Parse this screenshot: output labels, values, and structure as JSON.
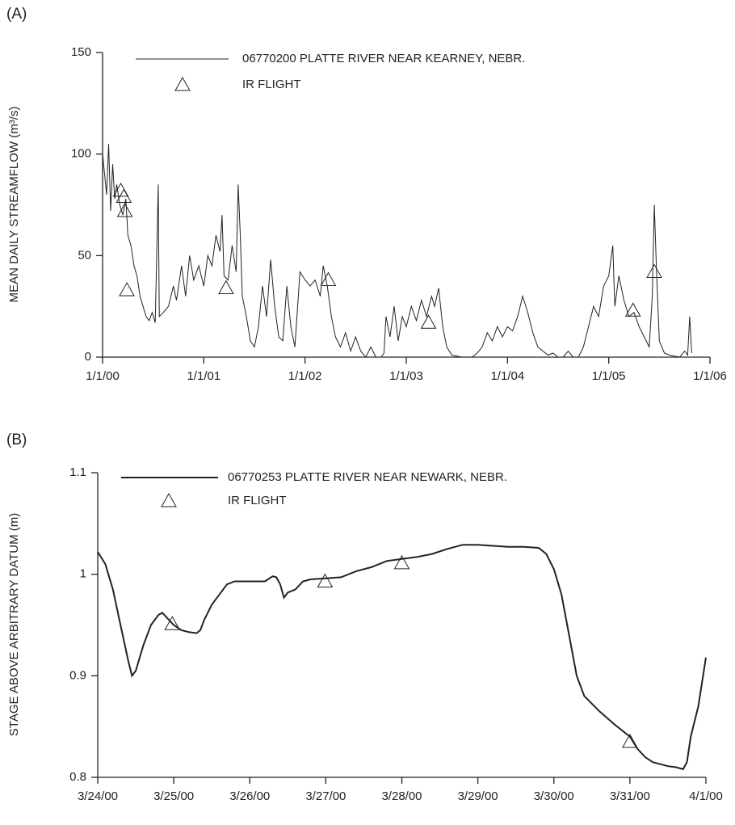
{
  "chart_data": [
    {
      "type": "line",
      "panel": "(A)",
      "ylabel": "MEAN DAILY STREAMFLOW (m³/s)",
      "xlim": [
        2000,
        2006
      ],
      "xticks": [
        {
          "value": 2000,
          "label": "1/1/00"
        },
        {
          "value": 2001,
          "label": "1/1/01"
        },
        {
          "value": 2002,
          "label": "1/1/02"
        },
        {
          "value": 2003,
          "label": "1/1/03"
        },
        {
          "value": 2004,
          "label": "1/1/04"
        },
        {
          "value": 2005,
          "label": "1/1/05"
        },
        {
          "value": 2006,
          "label": "1/1/06"
        }
      ],
      "ylim": [
        0,
        150
      ],
      "yticks": [
        0,
        50,
        100,
        150
      ],
      "series": [
        {
          "name": "06770200 PLATTE RIVER NEAR KEARNEY, NEBR.",
          "color": "#222222",
          "marker": "none",
          "x": [
            2000.0,
            2000.02,
            2000.04,
            2000.06,
            2000.08,
            2000.1,
            2000.12,
            2000.14,
            2000.17,
            2000.2,
            2000.23,
            2000.25,
            2000.28,
            2000.31,
            2000.34,
            2000.37,
            2000.4,
            2000.43,
            2000.46,
            2000.49,
            2000.52,
            2000.55,
            2000.56,
            2000.6,
            2000.65,
            2000.7,
            2000.73,
            2000.78,
            2000.82,
            2000.86,
            2000.9,
            2000.95,
            2001.0,
            2001.04,
            2001.08,
            2001.12,
            2001.16,
            2001.18,
            2001.2,
            2001.24,
            2001.28,
            2001.32,
            2001.34,
            2001.36,
            2001.38,
            2001.42,
            2001.46,
            2001.5,
            2001.54,
            2001.58,
            2001.62,
            2001.66,
            2001.7,
            2001.74,
            2001.78,
            2001.82,
            2001.86,
            2001.9,
            2001.95,
            2002.0,
            2002.05,
            2002.1,
            2002.15,
            2002.18,
            2002.22,
            2002.26,
            2002.3,
            2002.35,
            2002.4,
            2002.45,
            2002.5,
            2002.55,
            2002.6,
            2002.65,
            2002.7,
            2002.75,
            2002.78,
            2002.8,
            2002.84,
            2002.88,
            2002.92,
            2002.96,
            2003.0,
            2003.05,
            2003.1,
            2003.15,
            2003.2,
            2003.25,
            2003.28,
            2003.32,
            2003.36,
            2003.4,
            2003.45,
            2003.55,
            2003.65,
            2003.7,
            2003.75,
            2003.8,
            2003.85,
            2003.9,
            2003.95,
            2004.0,
            2004.05,
            2004.1,
            2004.15,
            2004.2,
            2004.25,
            2004.3,
            2004.35,
            2004.4,
            2004.45,
            2004.5,
            2004.55,
            2004.6,
            2004.65,
            2004.7,
            2004.75,
            2004.8,
            2004.85,
            2004.9,
            2004.95,
            2005.0,
            2005.04,
            2005.06,
            2005.1,
            2005.15,
            2005.2,
            2005.25,
            2005.3,
            2005.35,
            2005.4,
            2005.43,
            2005.45,
            2005.47,
            2005.5,
            2005.55,
            2005.6,
            2005.7,
            2005.75,
            2005.78,
            2005.8,
            2005.82
          ],
          "values": [
            100,
            90,
            80,
            105,
            72,
            95,
            78,
            85,
            75,
            70,
            78,
            60,
            55,
            45,
            40,
            30,
            25,
            20,
            18,
            22,
            17,
            85,
            20,
            22,
            25,
            35,
            28,
            45,
            30,
            50,
            38,
            45,
            35,
            50,
            45,
            60,
            52,
            70,
            40,
            38,
            55,
            42,
            85,
            60,
            30,
            20,
            8,
            5,
            15,
            35,
            20,
            48,
            25,
            10,
            8,
            35,
            15,
            5,
            42,
            38,
            35,
            38,
            30,
            45,
            35,
            20,
            10,
            5,
            12,
            3,
            10,
            3,
            0,
            5,
            0,
            0,
            2,
            20,
            10,
            25,
            8,
            20,
            15,
            25,
            18,
            28,
            20,
            30,
            25,
            34,
            15,
            5,
            1,
            0,
            0,
            2,
            5,
            12,
            8,
            15,
            10,
            15,
            13,
            20,
            30,
            22,
            12,
            5,
            3,
            1,
            2,
            0,
            0,
            3,
            0,
            0,
            5,
            15,
            25,
            20,
            35,
            40,
            55,
            25,
            40,
            28,
            20,
            22,
            15,
            10,
            5,
            30,
            75,
            45,
            8,
            2,
            1,
            0,
            3,
            1,
            20,
            2
          ]
        },
        {
          "name": "IR FLIGHT",
          "color": "#222222",
          "marker": "triangle",
          "x": [
            2000.18,
            2000.21,
            2000.22,
            2000.24,
            2001.22,
            2002.23,
            2003.22,
            2005.24,
            2005.45
          ],
          "values": [
            82,
            79,
            72,
            33,
            34,
            38,
            17,
            23,
            42
          ]
        }
      ]
    },
    {
      "type": "line",
      "panel": "(B)",
      "ylabel": "STAGE ABOVE ARBITRARY DATUM (m)",
      "xlim": [
        0,
        8
      ],
      "xticks": [
        {
          "value": 0,
          "label": "3/24/00"
        },
        {
          "value": 1,
          "label": "3/25/00"
        },
        {
          "value": 2,
          "label": "3/26/00"
        },
        {
          "value": 3,
          "label": "3/27/00"
        },
        {
          "value": 4,
          "label": "3/28/00"
        },
        {
          "value": 5,
          "label": "3/29/00"
        },
        {
          "value": 6,
          "label": "3/30/00"
        },
        {
          "value": 7,
          "label": "3/31/00"
        },
        {
          "value": 8,
          "label": "4/1/00"
        }
      ],
      "ylim": [
        0.8,
        1.1
      ],
      "yticks": [
        0.8,
        0.9,
        1,
        1.1
      ],
      "series": [
        {
          "name": "06770253 PLATTE RIVER NEAR NEWARK, NEBR.",
          "color": "#222222",
          "marker": "none",
          "x": [
            0,
            0.1,
            0.2,
            0.3,
            0.4,
            0.45,
            0.5,
            0.6,
            0.7,
            0.8,
            0.85,
            0.9,
            1.0,
            1.1,
            1.2,
            1.3,
            1.35,
            1.4,
            1.5,
            1.6,
            1.7,
            1.8,
            2.0,
            2.2,
            2.3,
            2.35,
            2.4,
            2.45,
            2.5,
            2.6,
            2.7,
            2.8,
            3.0,
            3.2,
            3.4,
            3.6,
            3.8,
            4.0,
            4.2,
            4.4,
            4.6,
            4.8,
            5.0,
            5.2,
            5.4,
            5.6,
            5.8,
            5.9,
            6.0,
            6.1,
            6.2,
            6.3,
            6.4,
            6.6,
            6.8,
            7.0,
            7.1,
            7.2,
            7.3,
            7.5,
            7.6,
            7.7,
            7.75,
            7.8,
            7.9,
            8.0
          ],
          "values": [
            1.022,
            1.01,
            0.985,
            0.95,
            0.915,
            0.9,
            0.905,
            0.93,
            0.95,
            0.96,
            0.962,
            0.958,
            0.95,
            0.945,
            0.943,
            0.942,
            0.945,
            0.955,
            0.97,
            0.98,
            0.99,
            0.993,
            0.993,
            0.993,
            0.998,
            0.997,
            0.99,
            0.977,
            0.982,
            0.985,
            0.993,
            0.995,
            0.996,
            0.997,
            1.003,
            1.007,
            1.013,
            1.015,
            1.017,
            1.02,
            1.025,
            1.029,
            1.029,
            1.028,
            1.027,
            1.027,
            1.026,
            1.02,
            1.005,
            0.98,
            0.94,
            0.9,
            0.88,
            0.865,
            0.852,
            0.84,
            0.828,
            0.82,
            0.815,
            0.811,
            0.81,
            0.808,
            0.815,
            0.84,
            0.87,
            0.918
          ]
        },
        {
          "name": "IR FLIGHT",
          "color": "#222222",
          "marker": "triangle",
          "x": [
            0.98,
            2.99,
            4.0,
            7.0
          ],
          "values": [
            0.951,
            0.993,
            1.011,
            0.835
          ]
        }
      ]
    }
  ]
}
